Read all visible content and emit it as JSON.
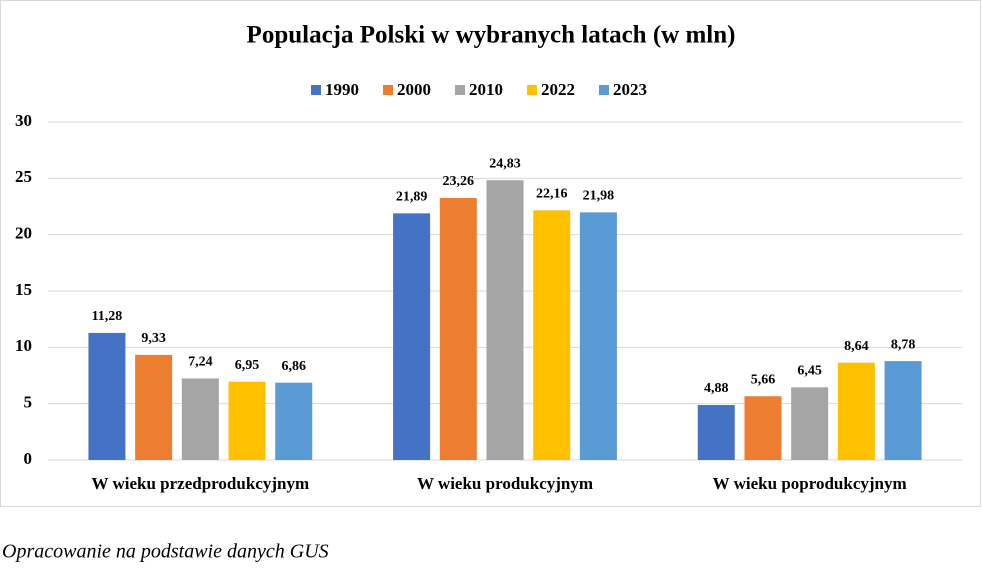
{
  "chart_data": {
    "type": "bar",
    "title": "Populacja Polski w wybranych latach (w mln)",
    "categories": [
      "W wieku przedprodukcyjnym",
      "W wieku produkcyjnym",
      "W wieku poprodukcyjnym"
    ],
    "series": [
      {
        "name": "1990",
        "color": "#4472c4",
        "values": [
          11.28,
          21.89,
          4.88
        ],
        "value_labels": [
          "11,28",
          "21,89",
          "4,88"
        ]
      },
      {
        "name": "2000",
        "color": "#ed7d31",
        "values": [
          9.33,
          23.26,
          5.66
        ],
        "value_labels": [
          "9,33",
          "23,26",
          "5,66"
        ]
      },
      {
        "name": "2010",
        "color": "#a5a5a5",
        "values": [
          7.24,
          24.83,
          6.45
        ],
        "value_labels": [
          "7,24",
          "24,83",
          "6,45"
        ]
      },
      {
        "name": "2022",
        "color": "#ffc000",
        "values": [
          6.95,
          22.16,
          8.64
        ],
        "value_labels": [
          "6,95",
          "22,16",
          "8,64"
        ]
      },
      {
        "name": "2023",
        "color": "#5b9bd5",
        "values": [
          6.86,
          21.98,
          8.78
        ],
        "value_labels": [
          "6,86",
          "21,98",
          "8,78"
        ]
      }
    ],
    "ylim": [
      0,
      30
    ],
    "yticks": [
      0,
      5,
      10,
      15,
      20,
      25,
      30
    ],
    "grid": true,
    "legend": "top",
    "note": "Opracowanie na podstawie danych GUS"
  }
}
